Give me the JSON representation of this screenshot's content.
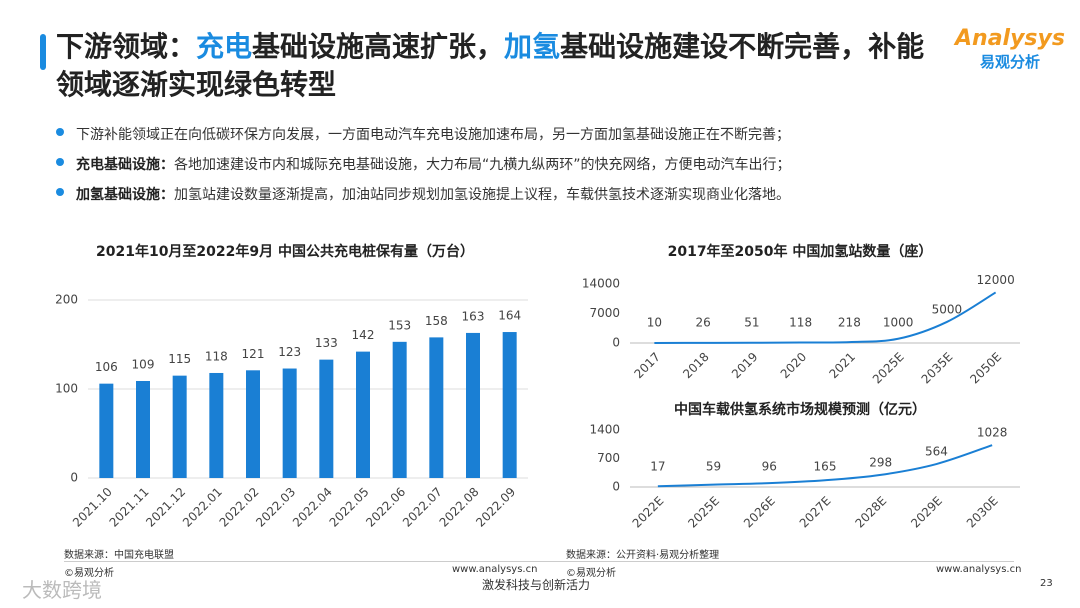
{
  "title": [
    "下游领域：",
    "充电",
    "基础设施高速扩张，",
    "加氢",
    "基础设施建设不断完善，补能领域逐渐实现绿色转型"
  ],
  "logo": {
    "brand": "Analysys",
    "name": "易观分析"
  },
  "bullets": [
    {
      "text": "下游补能领域正在向低碳环保方向发展，一方面电动汽车充电设施加速布局，另一方面加氢基础设施正在不断完善；"
    },
    {
      "label": "充电基础设施：",
      "text": "各地加速建设市内和城际充电基础设施，大力布局“九横九纵两环”的快充网络，方便电动汽车出行；"
    },
    {
      "label": "加氢基础设施：",
      "text": "加氢站建设数量逐渐提高，加油站同步规划加氢设施提上议程，车载供氢技术逐渐实现商业化落地。"
    }
  ],
  "sources": [
    "数据来源：中国充电联盟",
    "数据来源：公开资料·易观分析整理"
  ],
  "footer": {
    "copyright": "©易观分析",
    "site": "www.analysys.cn",
    "slogan": "激发科技与创新活力",
    "page": "23",
    "watermark": "大数跨境"
  },
  "chart_data": [
    {
      "type": "bar",
      "title": "2021年10月至2022年9月 中国公共充电桩保有量（万台）",
      "categories": [
        "2021.10",
        "2021.11",
        "2021.12",
        "2022.01",
        "2022.02",
        "2022.03",
        "2022.04",
        "2022.05",
        "2022.06",
        "2022.07",
        "2022.08",
        "2022.09"
      ],
      "values": [
        106,
        109,
        115,
        118,
        121,
        123,
        133,
        142,
        153,
        158,
        163,
        164
      ],
      "color": "#1a7fd4",
      "ylim": [
        0,
        200
      ],
      "yticks": [
        0,
        100,
        200
      ],
      "grid": true
    },
    {
      "type": "line",
      "title": "2017年至2050年 中国加氢站数量（座）",
      "categories": [
        "2017",
        "2018",
        "2019",
        "2020",
        "2021",
        "2025E",
        "2035E",
        "2050E"
      ],
      "values": [
        10,
        26,
        51,
        118,
        218,
        1000,
        5000,
        12000
      ],
      "color": "#1a7fd4",
      "ylim": [
        0,
        14000
      ],
      "yticks": [
        0,
        7000,
        14000
      ],
      "grid": false
    },
    {
      "type": "line",
      "title": "中国车载供氢系统市场规模预测（亿元）",
      "categories": [
        "2022E",
        "2025E",
        "2026E",
        "2027E",
        "2028E",
        "2029E",
        "2030E"
      ],
      "values": [
        17,
        59,
        96,
        165,
        298,
        564,
        1028
      ],
      "color": "#1a7fd4",
      "ylim": [
        0,
        1400
      ],
      "yticks": [
        0,
        700,
        1400
      ],
      "grid": false
    }
  ]
}
